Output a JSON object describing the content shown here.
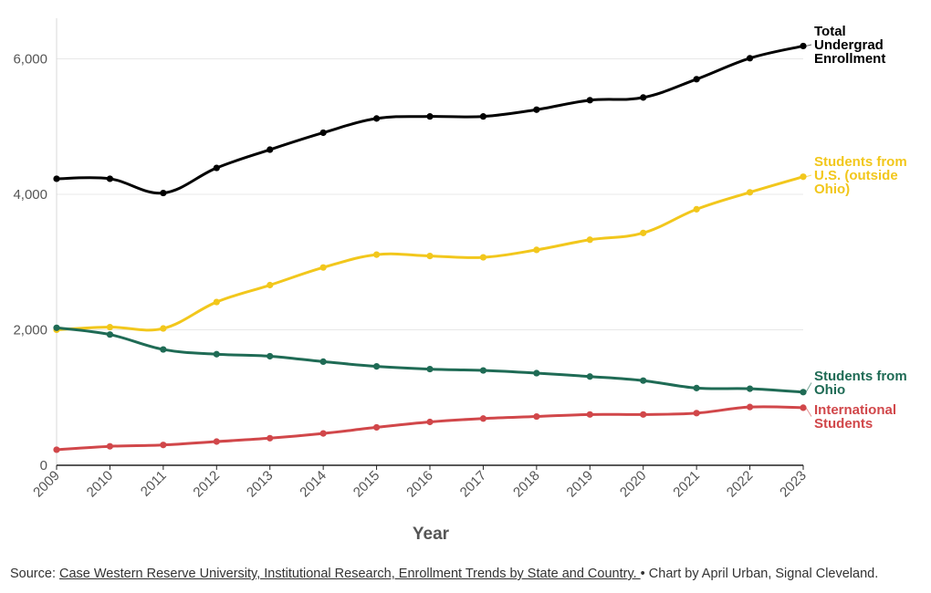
{
  "chart_data": {
    "type": "line",
    "title": "",
    "xlabel": "Year",
    "ylabel": "",
    "ylim": [
      0,
      6600
    ],
    "yticks": [
      0,
      2000,
      4000,
      6000
    ],
    "ytick_labels": [
      "0",
      "2,000",
      "4,000",
      "6,000"
    ],
    "x": [
      "2009",
      "2010",
      "2011",
      "2012",
      "2013",
      "2014",
      "2015",
      "2016",
      "2017",
      "2018",
      "2019",
      "2020",
      "2021",
      "2022",
      "2023"
    ],
    "grid": true,
    "series": [
      {
        "name": "Total Undergrad Enrollment",
        "label_lines": [
          "Total",
          "Undergrad",
          "Enrollment"
        ],
        "color": "#000000",
        "values": [
          4230,
          4230,
          4020,
          4390,
          4660,
          4910,
          5120,
          5150,
          5150,
          5250,
          5390,
          5430,
          5700,
          6010,
          6190
        ]
      },
      {
        "name": "Students from U.S. (outside Ohio)",
        "label_lines": [
          "Students from",
          "U.S. (outside",
          "Ohio)"
        ],
        "color": "#f2c71c",
        "values": [
          2000,
          2040,
          2020,
          2410,
          2660,
          2920,
          3110,
          3090,
          3070,
          3180,
          3330,
          3430,
          3780,
          4030,
          4260
        ]
      },
      {
        "name": "Students from Ohio",
        "label_lines": [
          "Students from",
          "Ohio"
        ],
        "color": "#1f6b55",
        "values": [
          2030,
          1930,
          1710,
          1640,
          1610,
          1530,
          1460,
          1420,
          1400,
          1360,
          1310,
          1250,
          1140,
          1130,
          1080
        ]
      },
      {
        "name": "International Students",
        "label_lines": [
          "International",
          "Students"
        ],
        "color": "#d1474a",
        "values": [
          230,
          280,
          300,
          350,
          400,
          470,
          560,
          640,
          690,
          720,
          750,
          750,
          770,
          860,
          850
        ]
      }
    ]
  },
  "source": {
    "prefix": "Source: ",
    "link_text": "Case Western Reserve University, Institutional Research, Enrollment Trends by State and Country. ",
    "suffix": "• Chart by April Urban, Signal Cleveland."
  }
}
